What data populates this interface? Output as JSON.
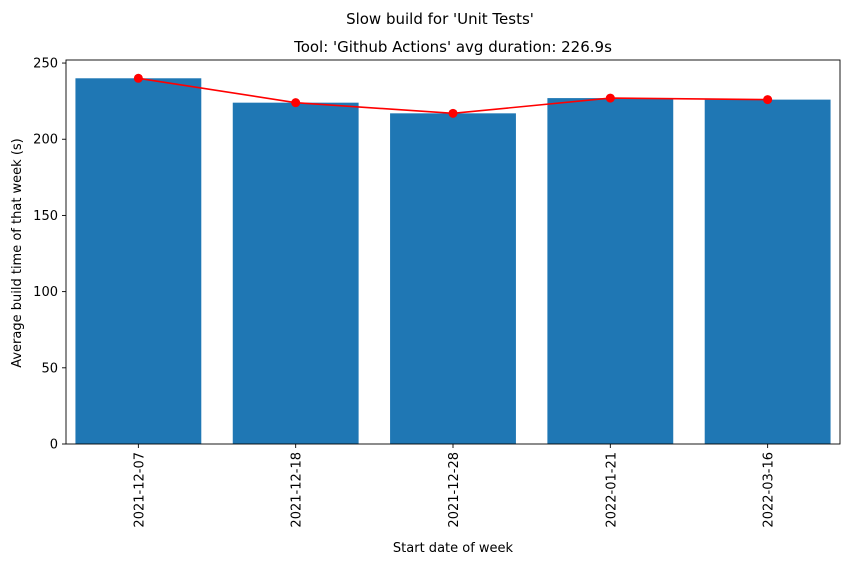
{
  "chart_data": {
    "type": "bar",
    "suptitle": "Slow build for 'Unit Tests'",
    "title": "Tool: 'Github Actions' avg duration: 226.9s",
    "xlabel": "Start date of week",
    "ylabel": "Average build time of that week (s)",
    "categories": [
      "2021-12-07",
      "2021-12-18",
      "2021-12-28",
      "2022-01-21",
      "2022-03-16"
    ],
    "values": [
      240,
      224,
      217,
      227,
      226
    ],
    "line_values": [
      240,
      224,
      217,
      227,
      226
    ],
    "ylim": [
      0,
      252
    ],
    "yticks": [
      0,
      50,
      100,
      150,
      200,
      250
    ],
    "bar_color": "#1f77b4",
    "line_color": "#ff0000",
    "grid": false,
    "legend": "none"
  }
}
